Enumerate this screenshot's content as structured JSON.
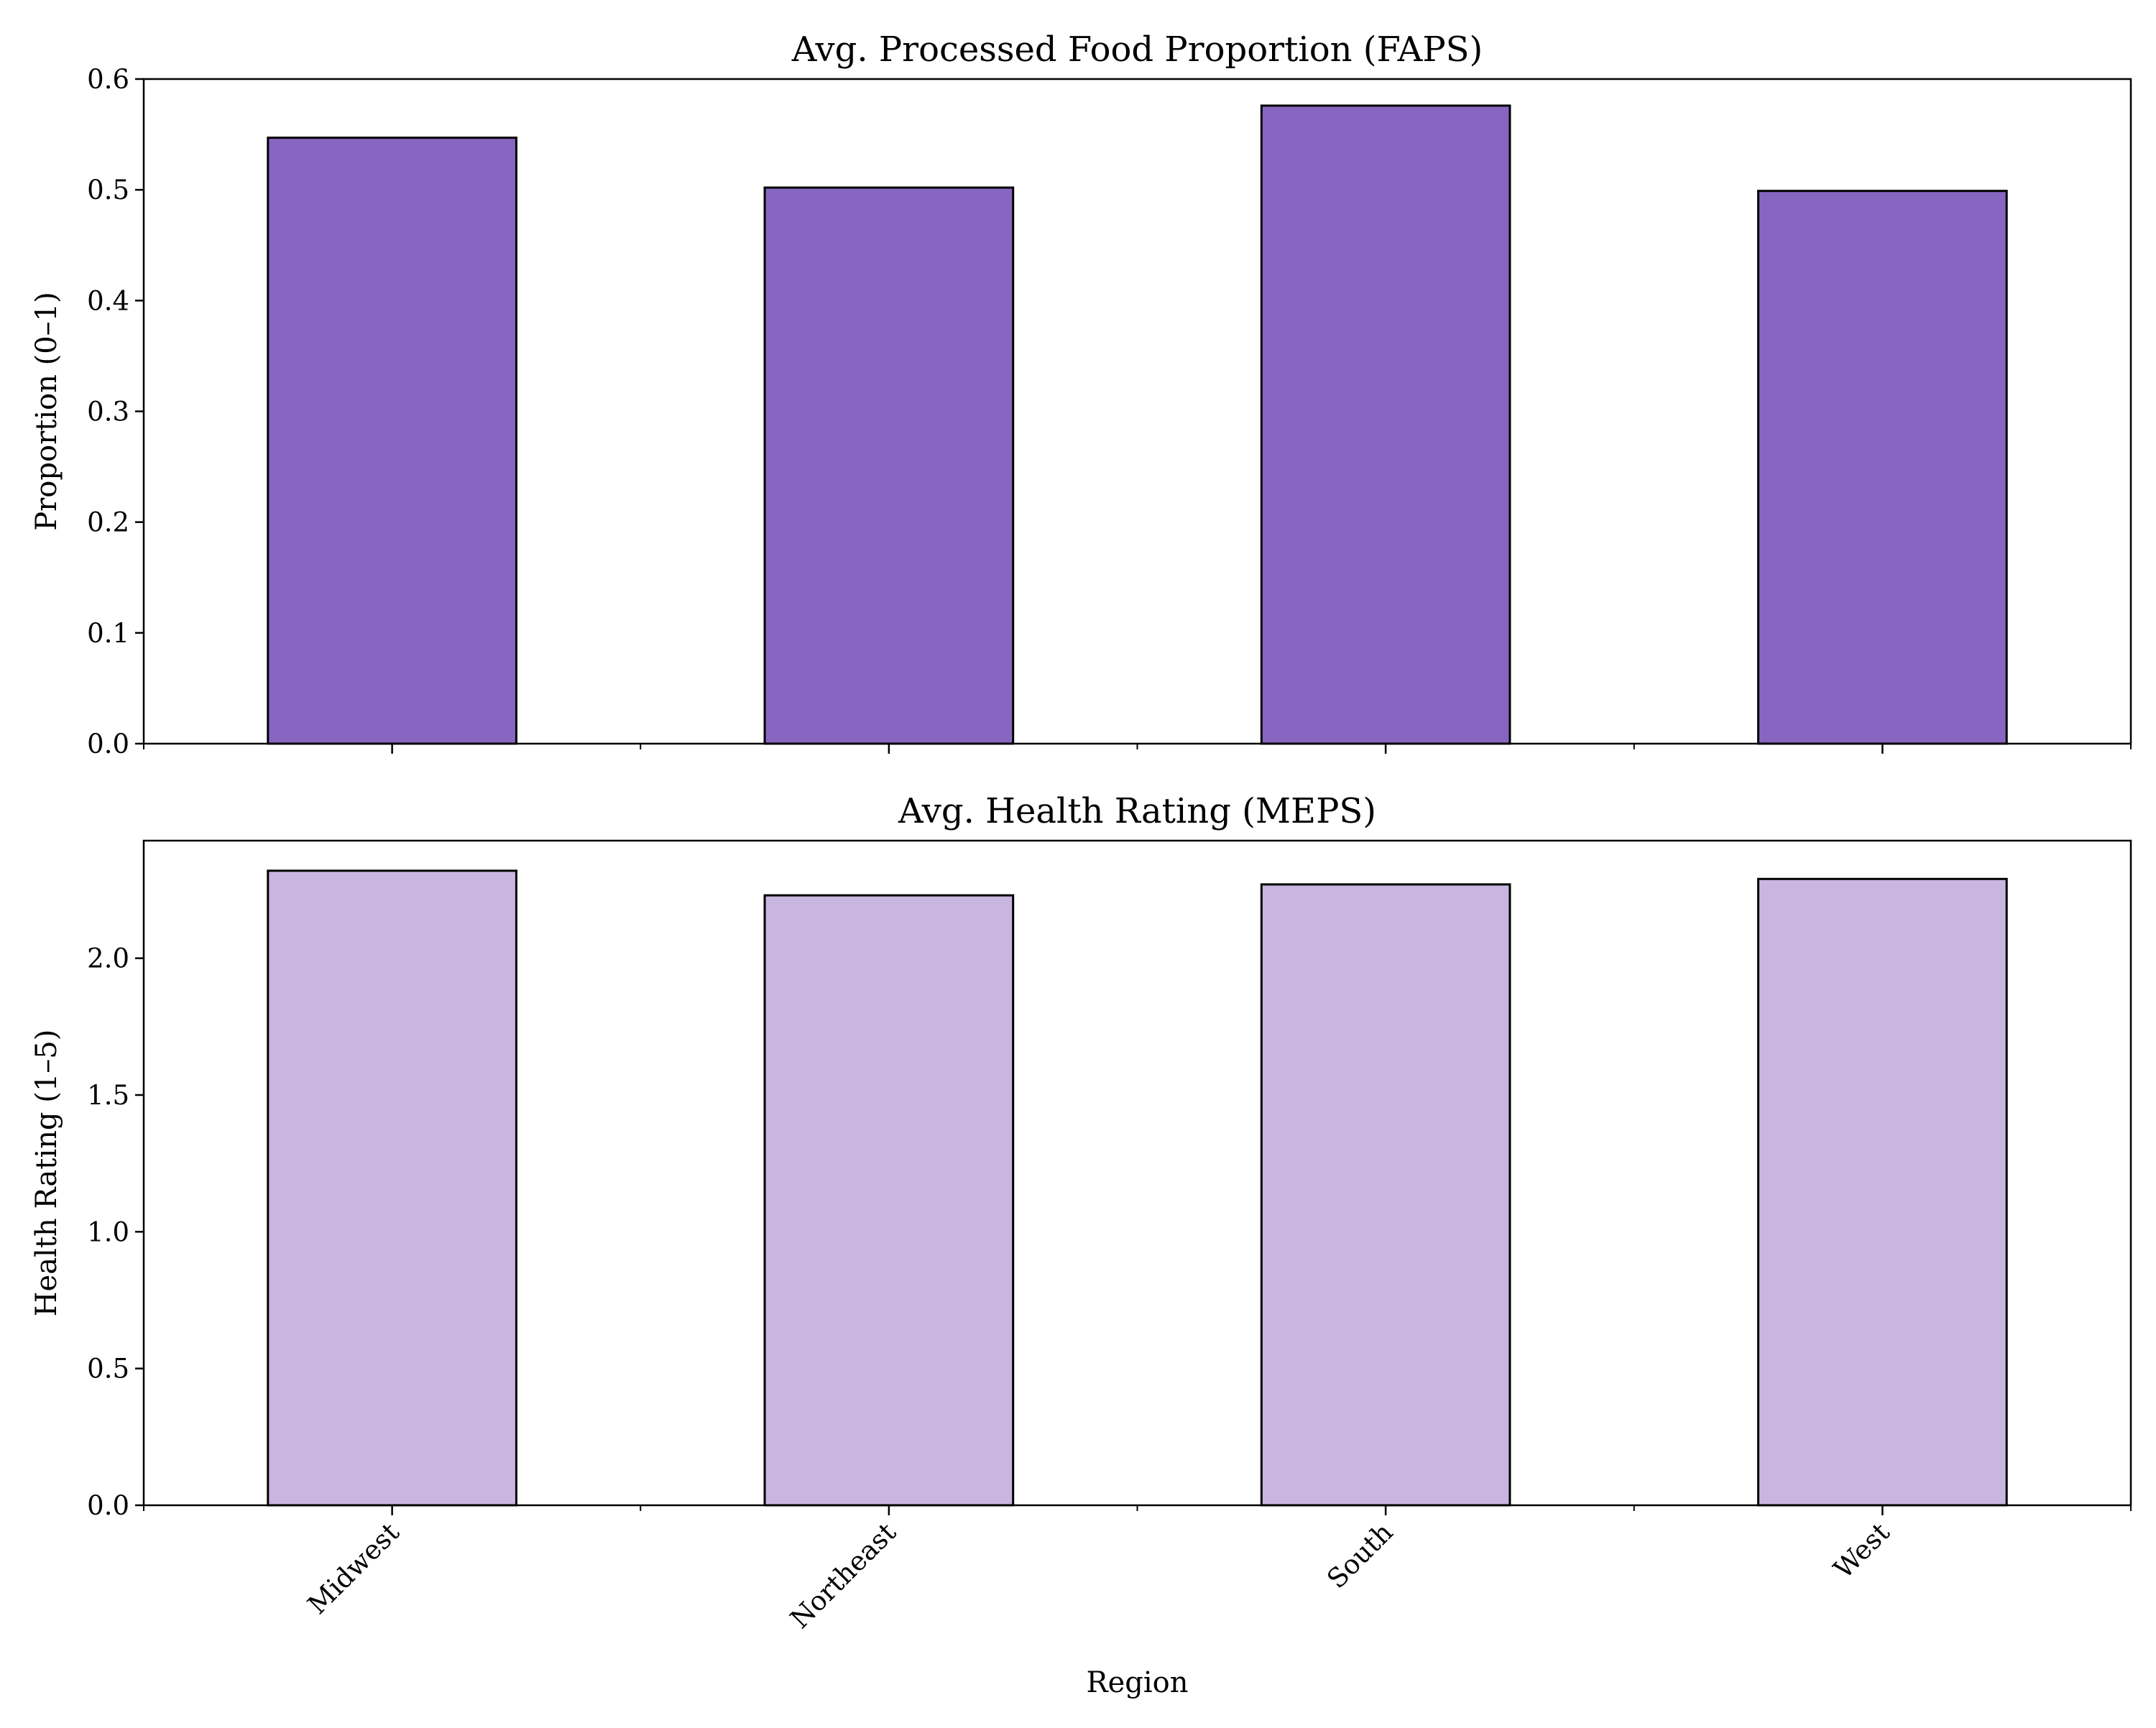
{
  "chart_data": [
    {
      "type": "bar",
      "title": "Avg. Processed Food Proportion (FAPS)",
      "ylabel": "Proportion (0–1)",
      "xlabel": "",
      "categories": [
        "Midwest",
        "Northeast",
        "South",
        "West"
      ],
      "values": [
        0.547,
        0.502,
        0.576,
        0.499
      ],
      "ylim": [
        0,
        0.6
      ],
      "yticks": [
        0.0,
        0.1,
        0.2,
        0.3,
        0.4,
        0.5,
        0.6
      ],
      "ytick_labels": [
        "0.0",
        "0.1",
        "0.2",
        "0.3",
        "0.4",
        "0.5",
        "0.6"
      ],
      "show_category_labels": false,
      "bar_color": "#8766c2",
      "edge_color": "#000000",
      "grid": false
    },
    {
      "type": "bar",
      "title": "Avg. Health Rating (MEPS)",
      "ylabel": "Health Rating (1–5)",
      "xlabel": "Region",
      "categories": [
        "Midwest",
        "Northeast",
        "South",
        "West"
      ],
      "values": [
        2.32,
        2.23,
        2.27,
        2.29
      ],
      "ylim": [
        0,
        2.43
      ],
      "yticks": [
        0.0,
        0.5,
        1.0,
        1.5,
        2.0
      ],
      "ytick_labels": [
        "0.0",
        "0.5",
        "1.0",
        "1.5",
        "2.0"
      ],
      "show_category_labels": true,
      "bar_color": "#c8b6e0",
      "edge_color": "#000000",
      "grid": false
    }
  ]
}
